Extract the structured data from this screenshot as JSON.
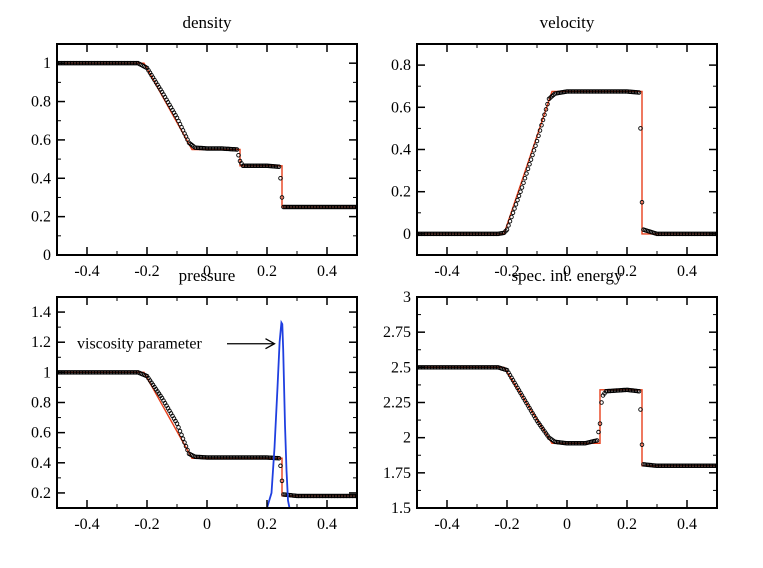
{
  "figure": {
    "panels": [
      {
        "title": "density",
        "annotation": ""
      },
      {
        "title": "velocity",
        "annotation": ""
      },
      {
        "title": "pressure",
        "annotation": "viscosity parameter"
      },
      {
        "title": "spec. int. energy",
        "annotation": ""
      }
    ]
  },
  "colors": {
    "analytic": "#e8401c",
    "numerical": "#000000",
    "viscosity": "#1f3fe0",
    "axes": "#000000"
  },
  "chart_data": [
    {
      "type": "line",
      "title": "density",
      "xlim": [
        -0.5,
        0.5
      ],
      "ylim": [
        0,
        1.1
      ],
      "xticks": [
        -0.4,
        -0.2,
        0,
        0.2,
        0.4
      ],
      "xtick_labels": [
        "-0.4",
        "-0.2",
        "0",
        "0.2",
        "0.4"
      ],
      "yticks": [
        0,
        0.2,
        0.4,
        0.6,
        0.8,
        1
      ],
      "ytick_labels": [
        "0",
        "0.2",
        "0.4",
        "0.6",
        "0.8",
        "1"
      ],
      "series": [
        {
          "role": "analytic",
          "style": "line",
          "x": [
            -0.5,
            -0.21,
            -0.05,
            0.11,
            0.11,
            0.25,
            0.25,
            0.5
          ],
          "y": [
            1.0,
            1.0,
            0.55,
            0.55,
            0.465,
            0.465,
            0.25,
            0.25
          ]
        },
        {
          "role": "numerical",
          "style": "markers",
          "x": [
            -0.5,
            -0.23,
            -0.2,
            -0.15,
            -0.1,
            -0.06,
            -0.04,
            0.0,
            0.05,
            0.1,
            0.11,
            0.12,
            0.2,
            0.24,
            0.245,
            0.25,
            0.255,
            0.3,
            0.5
          ],
          "y": [
            1.0,
            1.0,
            0.975,
            0.85,
            0.715,
            0.585,
            0.56,
            0.555,
            0.555,
            0.55,
            0.49,
            0.465,
            0.465,
            0.46,
            0.4,
            0.3,
            0.25,
            0.25,
            0.25
          ]
        }
      ]
    },
    {
      "type": "line",
      "title": "velocity",
      "xlim": [
        -0.5,
        0.5
      ],
      "ylim": [
        -0.1,
        0.9
      ],
      "xticks": [
        -0.4,
        -0.2,
        0,
        0.2,
        0.4
      ],
      "xtick_labels": [
        "-0.4",
        "-0.2",
        "0",
        "0.2",
        "0.4"
      ],
      "yticks": [
        0,
        0.2,
        0.4,
        0.6,
        0.8
      ],
      "ytick_labels": [
        "0",
        "0.2",
        "0.4",
        "0.6",
        "0.8"
      ],
      "series": [
        {
          "role": "analytic",
          "style": "line",
          "x": [
            -0.5,
            -0.21,
            -0.05,
            0.25,
            0.25,
            0.5
          ],
          "y": [
            0.0,
            0.0,
            0.675,
            0.675,
            0.0,
            0.0
          ]
        },
        {
          "role": "numerical",
          "style": "markers",
          "x": [
            -0.5,
            -0.23,
            -0.21,
            -0.2,
            -0.15,
            -0.1,
            -0.06,
            -0.04,
            0.0,
            0.1,
            0.2,
            0.24,
            0.245,
            0.25,
            0.255,
            0.3,
            0.5
          ],
          "y": [
            0.0,
            0.0,
            0.005,
            0.02,
            0.22,
            0.44,
            0.64,
            0.665,
            0.675,
            0.675,
            0.675,
            0.67,
            0.5,
            0.15,
            0.02,
            0.0,
            0.0
          ]
        }
      ]
    },
    {
      "type": "line",
      "title": "pressure",
      "xlim": [
        -0.5,
        0.5
      ],
      "ylim": [
        0.1,
        1.5
      ],
      "xticks": [
        -0.4,
        -0.2,
        0,
        0.2,
        0.4
      ],
      "xtick_labels": [
        "-0.4",
        "-0.2",
        "0",
        "0.2",
        "0.4"
      ],
      "yticks": [
        0.2,
        0.4,
        0.6,
        0.8,
        1,
        1.2,
        1.4
      ],
      "ytick_labels": [
        "0.2",
        "0.4",
        "0.6",
        "0.8",
        "1",
        "1.2",
        "1.4"
      ],
      "series": [
        {
          "role": "analytic",
          "style": "line",
          "x": [
            -0.5,
            -0.21,
            -0.05,
            0.25,
            0.25,
            0.5
          ],
          "y": [
            1.0,
            1.0,
            0.43,
            0.43,
            0.18,
            0.18
          ]
        },
        {
          "role": "numerical",
          "style": "markers",
          "x": [
            -0.5,
            -0.23,
            -0.2,
            -0.15,
            -0.1,
            -0.06,
            -0.04,
            0.0,
            0.1,
            0.2,
            0.24,
            0.245,
            0.25,
            0.255,
            0.3,
            0.5
          ],
          "y": [
            1.0,
            1.0,
            0.975,
            0.83,
            0.66,
            0.46,
            0.44,
            0.435,
            0.435,
            0.435,
            0.43,
            0.38,
            0.28,
            0.19,
            0.18,
            0.18
          ]
        },
        {
          "role": "viscosity",
          "style": "line",
          "x": [
            0.2,
            0.215,
            0.225,
            0.235,
            0.242,
            0.248,
            0.251,
            0.254,
            0.26,
            0.265,
            0.27,
            0.275
          ],
          "y": [
            0.1,
            0.2,
            0.5,
            0.9,
            1.2,
            1.33,
            1.32,
            1.15,
            0.65,
            0.35,
            0.15,
            0.1
          ]
        }
      ],
      "annotations": [
        {
          "text": "viscosity parameter",
          "arrow_to": [
            0.235,
            1.19
          ]
        }
      ]
    },
    {
      "type": "line",
      "title": "spec. int. energy",
      "xlim": [
        -0.5,
        0.5
      ],
      "ylim": [
        1.5,
        3.0
      ],
      "xticks": [
        -0.4,
        -0.2,
        0,
        0.2,
        0.4
      ],
      "xtick_labels": [
        "-0.4",
        "-0.2",
        "0",
        "0.2",
        "0.4"
      ],
      "yticks": [
        1.5,
        1.75,
        2,
        2.25,
        2.5,
        2.75,
        3
      ],
      "ytick_labels": [
        "1.5",
        "1.75",
        "2",
        "2.25",
        "2.5",
        "2.75",
        "3"
      ],
      "series": [
        {
          "role": "analytic",
          "style": "line",
          "x": [
            -0.5,
            -0.21,
            -0.05,
            0.11,
            0.11,
            0.25,
            0.25,
            0.5
          ],
          "y": [
            2.5,
            2.5,
            1.96,
            1.96,
            2.34,
            2.34,
            1.8,
            1.8
          ]
        },
        {
          "role": "numerical",
          "style": "markers",
          "x": [
            -0.5,
            -0.23,
            -0.2,
            -0.15,
            -0.1,
            -0.06,
            -0.04,
            0.0,
            0.06,
            0.1,
            0.11,
            0.115,
            0.12,
            0.13,
            0.2,
            0.24,
            0.245,
            0.25,
            0.255,
            0.3,
            0.5
          ],
          "y": [
            2.5,
            2.5,
            2.48,
            2.3,
            2.12,
            2.0,
            1.97,
            1.96,
            1.96,
            1.98,
            2.1,
            2.25,
            2.3,
            2.33,
            2.34,
            2.33,
            2.2,
            1.95,
            1.81,
            1.8,
            1.8
          ]
        }
      ]
    }
  ]
}
